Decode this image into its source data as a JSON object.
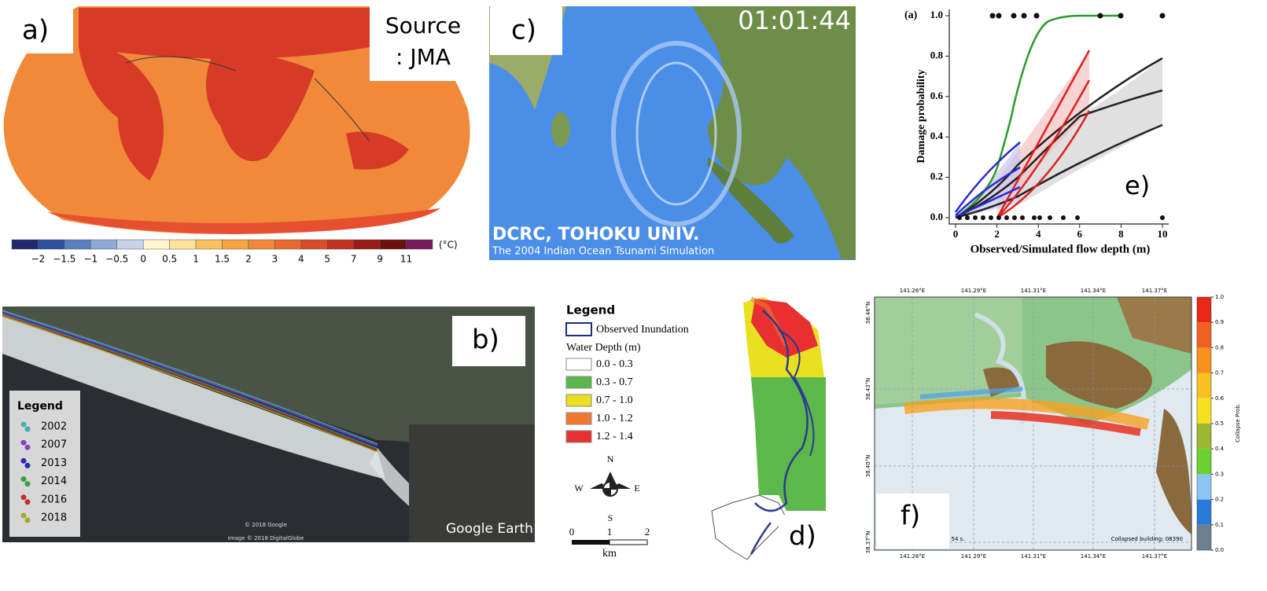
{
  "panel_a": {
    "label": "a)",
    "source": [
      "Source",
      ": JMA"
    ],
    "unit": "(°C)",
    "colorbar_labels": [
      "−2",
      "−1.5",
      "−1",
      "−0.5",
      "0",
      "0.5",
      "1",
      "1.5",
      "2",
      "3",
      "4",
      "5",
      "7",
      "9",
      "11"
    ]
  },
  "panel_b": {
    "label": "b)",
    "legend_title": "Legend",
    "legend_items": [
      {
        "name": "2002",
        "color": "#3fb0b0"
      },
      {
        "name": "2007",
        "color": "#8a3fc0"
      },
      {
        "name": "2013",
        "color": "#2a2ab0"
      },
      {
        "name": "2014",
        "color": "#3aa040"
      },
      {
        "name": "2016",
        "color": "#c03030"
      },
      {
        "name": "2018",
        "color": "#a8a830"
      }
    ],
    "watermark": "Google Earth",
    "copyright": [
      "© 2018 Google",
      "Image © 2018 DigitalGlobe"
    ]
  },
  "panel_c": {
    "label": "c)",
    "timer": "01:01:44",
    "credit": "DCRC, TOHOKU UNIV.",
    "caption": "The 2004 Indian Ocean Tsunami Simulation"
  },
  "panel_d": {
    "label": "d)",
    "legend_title": "Legend",
    "observed": "Observed Inundation",
    "depth_title": "Water Depth (m)",
    "depth_classes": [
      {
        "name": "0.0 - 0.3",
        "color": "#ffffff"
      },
      {
        "name": "0.3 - 0.7",
        "color": "#5cb84a"
      },
      {
        "name": "0.7 - 1.0",
        "color": "#e8e020"
      },
      {
        "name": "1.0 - 1.2",
        "color": "#f07830"
      },
      {
        "name": "1.2 - 1.4",
        "color": "#e83030"
      }
    ],
    "compass": [
      "N",
      "S",
      "W",
      "E"
    ],
    "scale": [
      "0",
      "1",
      "2"
    ],
    "scale_unit": "km"
  },
  "panel_e": {
    "label": "e)",
    "sub_label": "(a)",
    "y_label": "Damage probability",
    "x_label": "Observed/Simulated flow depth (m)",
    "ylim": [
      0,
      1
    ],
    "xlim": [
      0,
      10
    ],
    "yticks": [
      {
        "value": 0,
        "label": "0.0"
      },
      {
        "value": 0.2,
        "label": "0.2"
      },
      {
        "value": 0.4,
        "label": "0.4"
      },
      {
        "value": 0.6,
        "label": "0.6"
      },
      {
        "value": 0.8,
        "label": "0.8"
      },
      {
        "value": 1,
        "label": "1.0"
      }
    ],
    "xticks": [
      0,
      2,
      4,
      6,
      8,
      10
    ]
  },
  "panel_f": {
    "label": "f)",
    "lon_labels": [
      "141.26°E",
      "141.29°E",
      "141.31°E",
      "141.34°E",
      "141.37°E"
    ],
    "lat_labels": [
      "38.46°N",
      "38.43°N",
      "38.40°N",
      "38.37°N"
    ],
    "time": "54 s.",
    "counter": "Collapsed building: 08390",
    "colorbar_title": "Collapse Prob.",
    "colorbar_lim": [
      0,
      1
    ],
    "colorbar_ticks": [
      {
        "value": 0,
        "label": "0.0"
      },
      {
        "value": 0.1,
        "label": "0.1"
      },
      {
        "value": 0.2,
        "label": "0.2"
      },
      {
        "value": 0.3,
        "label": "0.3"
      },
      {
        "value": 0.4,
        "label": "0.4"
      },
      {
        "value": 0.5,
        "label": "0.5"
      },
      {
        "value": 0.6,
        "label": "0.6"
      },
      {
        "value": 0.7,
        "label": "0.7"
      },
      {
        "value": 0.8,
        "label": "0.8"
      },
      {
        "value": 0.9,
        "label": "0.9"
      },
      {
        "value": 1,
        "label": "1.0"
      }
    ]
  }
}
